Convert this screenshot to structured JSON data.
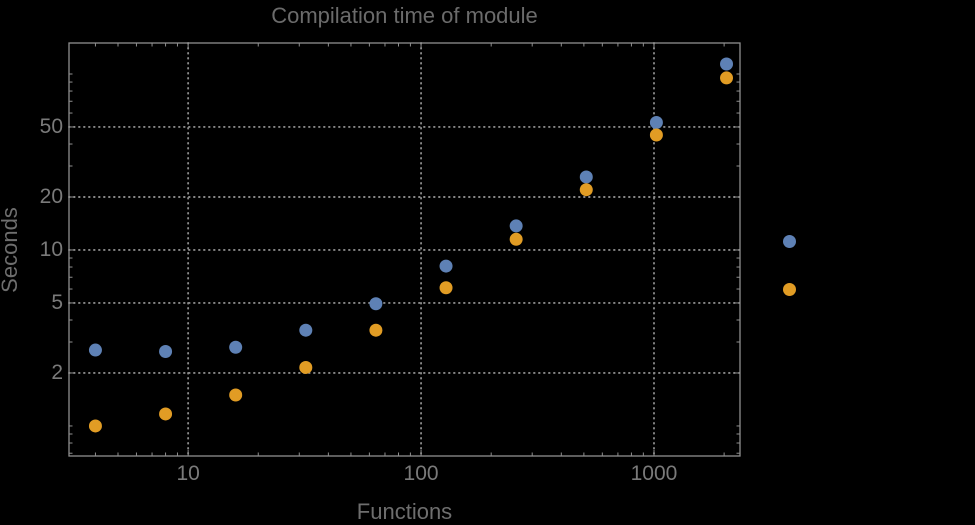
{
  "page": {
    "background": "#000000"
  },
  "colors": {
    "background": "#000000",
    "frame": "#8f8f8f",
    "grid": "#8a8a8a",
    "tick_label": "#7a7a7a",
    "title": "#6b6b6b",
    "axis_label": "#6e6e6e"
  },
  "chart_data": {
    "type": "scatter",
    "title": "Compilation time of module",
    "xlabel": "Functions",
    "ylabel": "Seconds",
    "x_scale": "log",
    "y_scale": "log",
    "xlim": [
      3.08,
      2340
    ],
    "ylim": [
      0.675,
      150
    ],
    "grid": true,
    "legend_position": "right-of-plot-markers-only",
    "x_gridlines": [
      10,
      100,
      1000
    ],
    "y_gridlines": [
      2,
      5,
      10,
      20,
      50
    ],
    "x_ticks": [
      {
        "value": 10,
        "label": "10"
      },
      {
        "value": 100,
        "label": "100"
      },
      {
        "value": 1000,
        "label": "1000"
      }
    ],
    "y_ticks": [
      {
        "value": 2,
        "label": "2"
      },
      {
        "value": 5,
        "label": "5"
      },
      {
        "value": 10,
        "label": "10"
      },
      {
        "value": 20,
        "label": "20"
      },
      {
        "value": 50,
        "label": "50"
      }
    ],
    "x_minor_ticks": [
      4,
      5,
      6,
      7,
      8,
      9,
      20,
      30,
      40,
      50,
      60,
      70,
      80,
      90,
      200,
      300,
      400,
      500,
      600,
      700,
      800,
      900,
      2000
    ],
    "y_minor_ticks": [
      0.7,
      0.8,
      0.9,
      1,
      3,
      4,
      6,
      7,
      8,
      9,
      30,
      40,
      60,
      70,
      80,
      90,
      100
    ],
    "x": [
      4,
      8,
      16,
      32,
      64,
      128,
      256,
      512,
      1024,
      2048
    ],
    "series": [
      {
        "name": "blue",
        "color": "#5e81b5",
        "values": [
          2.7,
          2.65,
          2.8,
          3.5,
          4.95,
          8.1,
          13.7,
          26,
          53,
          114
        ]
      },
      {
        "name": "orange",
        "color": "#e19c24",
        "values": [
          1.0,
          1.17,
          1.5,
          2.15,
          3.5,
          6.1,
          11.5,
          22,
          45,
          95
        ]
      }
    ]
  }
}
